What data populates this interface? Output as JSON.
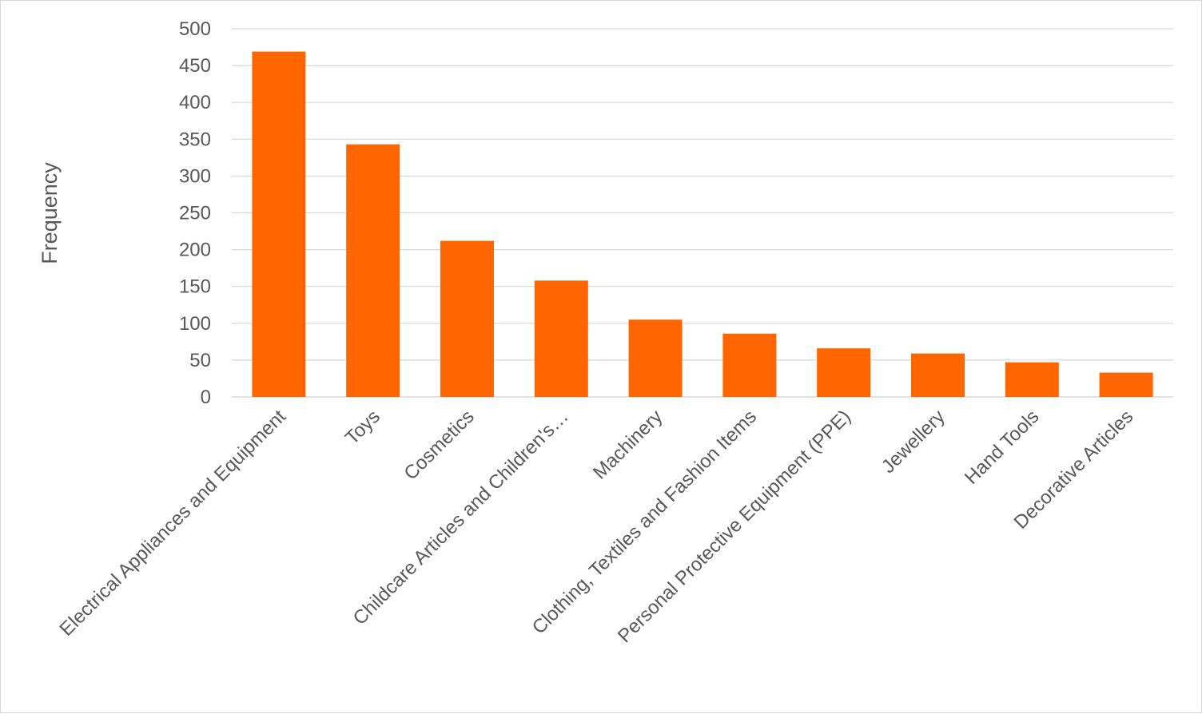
{
  "chart_data": {
    "type": "bar",
    "title": "",
    "xlabel": "",
    "ylabel": "Frequency",
    "ylim": [
      0,
      500
    ],
    "ytick_step": 50,
    "grid": true,
    "legend": "none",
    "bar_color": "#ff6600",
    "grid_color": "#d9d9d9",
    "text_color": "#595959",
    "categories": [
      "Electrical Appliances and Equipment",
      "Toys",
      "Cosmetics",
      "Childcare  Articles and Children's…",
      "Machinery",
      "Clothing, Textiles and Fashion Items",
      "Personal Protective Equipment (PPE)",
      "Jewellery",
      "Hand Tools",
      "Decorative Articles"
    ],
    "values": [
      469,
      343,
      212,
      158,
      105,
      86,
      66,
      59,
      47,
      33
    ]
  }
}
